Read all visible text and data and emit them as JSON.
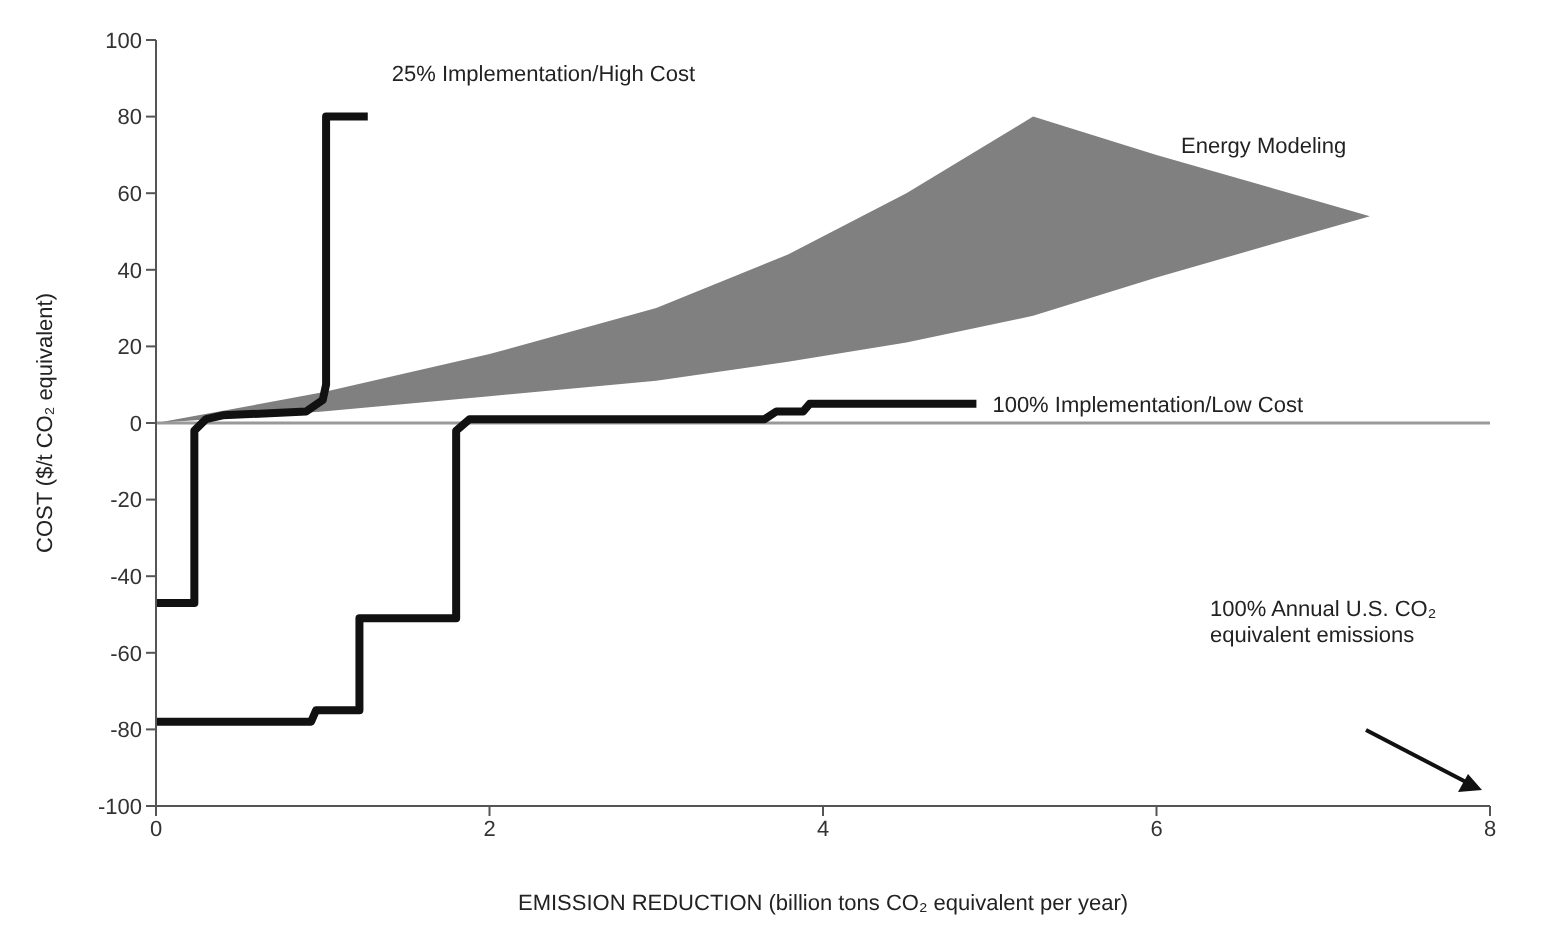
{
  "chart_data": {
    "type": "line",
    "xlabel": "EMISSION REDUCTION (billion tons CO₂ equivalent per year)",
    "ylabel": "COST ($/t CO₂ equivalent)",
    "xlim": [
      0,
      8
    ],
    "xticks": [
      0,
      2,
      4,
      6,
      8
    ],
    "ylim": [
      -100,
      100
    ],
    "yticks": [
      -100,
      -80,
      -60,
      -40,
      -20,
      0,
      20,
      40,
      60,
      80,
      100
    ],
    "series": [
      {
        "name": "25% Implementation/High Cost",
        "color": "#111111",
        "x": [
          0,
          0.23,
          0.23,
          0.3,
          0.4,
          0.9,
          1.0,
          1.02,
          1.02,
          1.27
        ],
        "values": [
          -47,
          -47,
          -2,
          1,
          2,
          3,
          6,
          10,
          80,
          80
        ]
      },
      {
        "name": "100% Implementation/Low Cost",
        "color": "#111111",
        "x": [
          0,
          0.93,
          0.96,
          1.22,
          1.22,
          1.8,
          1.8,
          1.88,
          3.65,
          3.72,
          3.88,
          3.92,
          4.92
        ],
        "values": [
          -78,
          -78,
          -75,
          -75,
          -51,
          -51,
          -2,
          1,
          1,
          3,
          3,
          5,
          5
        ]
      },
      {
        "name": "Energy Modeling",
        "type": "area",
        "color": "#808080",
        "x": [
          0,
          1,
          2,
          3,
          3.79,
          4.5,
          5.26,
          6,
          7.28,
          6,
          5.26,
          4.5,
          3.79,
          3,
          2,
          1,
          0
        ],
        "values": [
          0,
          8,
          18,
          30,
          44,
          60,
          80,
          70,
          54,
          38,
          28,
          21,
          16,
          11,
          7,
          3,
          0
        ]
      }
    ],
    "ref_lines": [
      {
        "axis": "y",
        "value": 0,
        "color": "#999999"
      }
    ],
    "annotations": [
      "100% Annual U.S. CO₂ equivalent emissions"
    ]
  }
}
